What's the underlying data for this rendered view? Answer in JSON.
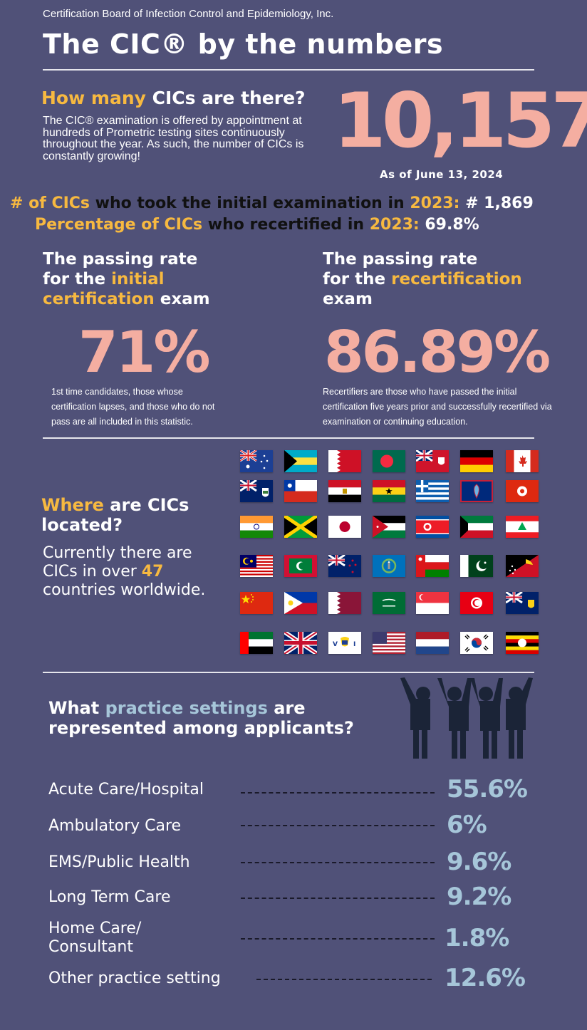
{
  "header": {
    "organization": "Certification Board of Infection Control and Epidemiology, Inc.",
    "title": "The CIC® by the numbers"
  },
  "count_section": {
    "question_highlight": "How many ",
    "question_rest": "CICs are there?",
    "description": "The CIC® examination is offered by appointment at hundreds of Prometric testing sites continuously throughout the year. As such, the number of CICs is constantly growing!",
    "total": "10,157",
    "as_of": "As of June 13, 2024"
  },
  "stats": {
    "initial_a": "# of CICs",
    "initial_b": " who took the initial examination in ",
    "initial_year": "2023:",
    "initial_value": " # 1,869",
    "recert_a": "Percentage of CICs",
    "recert_b": " who recertified in ",
    "recert_year": "2023:",
    "recert_value": " 69.8%"
  },
  "initial_exam": {
    "line1": "The passing rate",
    "line2a": "for the ",
    "line2b": "initial",
    "line3a": "certification",
    "line3b": " exam",
    "rate": "71%",
    "note": "1st time candidates, those whose certification lapses, and those who do not pass are all included in this statistic."
  },
  "recert_exam": {
    "line1": "The passing rate",
    "line2a": "for the ",
    "line2b": "recertification",
    "line3": "exam",
    "rate": "86.89%",
    "note": "Recertifiers are those who have passed the initial certification five years prior and successfully recertified via examination or continuing education."
  },
  "location": {
    "q_highlight": "Where",
    "q_rest1": " are CICs",
    "q_rest2": "located?",
    "text_a": "Currently there are CICs in over ",
    "count": "47",
    "text_b": " countries worldwide.",
    "flags": [
      "australia-flag",
      "bahamas-flag",
      "bahrain-flag",
      "bangladesh-flag",
      "bermuda-flag",
      "germany-flag",
      "canada-flag",
      "cayman-islands-flag",
      "chile-flag",
      "egypt-flag",
      "ghana-flag",
      "greece-flag",
      "guam-flag",
      "hong-kong-flag",
      "india-flag",
      "jamaica-flag",
      "japan-flag",
      "jordan-flag",
      "north-korea-flag",
      "kuwait-flag",
      "lebanon-flag",
      "malaysia-flag",
      "maldives-flag",
      "new-zealand-flag",
      "northern-mariana-islands-flag",
      "oman-flag",
      "pakistan-flag",
      "papua-new-guinea-flag",
      "china-flag",
      "philippines-flag",
      "qatar-flag",
      "saudi-arabia-flag",
      "singapore-flag",
      "tunisia-flag",
      "turks-and-caicos-flag",
      "uae-flag",
      "united-kingdom-flag",
      "us-virgin-islands-flag",
      "usa-flag",
      "netherlands-flag",
      "south-korea-flag",
      "uganda-flag"
    ]
  },
  "practice": {
    "q_a": "What ",
    "q_b": "practice settings",
    "q_c": " are",
    "q_line2": "represented among applicants?",
    "icon": "people-cheering-icon",
    "settings": [
      {
        "label": "Acute Care/Hospital",
        "value": "55.6%"
      },
      {
        "label": "Ambulatory Care",
        "value": "6%"
      },
      {
        "label": "EMS/Public Health",
        "value": "9.6%"
      },
      {
        "label": "Long Term Care",
        "value": "9.2%"
      },
      {
        "label": "Home Care/",
        "label2": "Consultant",
        "value": "1.8%"
      },
      {
        "label": "Other practice setting",
        "value": "12.6%"
      }
    ]
  },
  "colors": {
    "background": "#505178",
    "accent_yellow": "#f7b940",
    "accent_pink": "#f4aea1",
    "accent_blue": "#a6c6d9",
    "icon_navy": "#1b2437"
  }
}
